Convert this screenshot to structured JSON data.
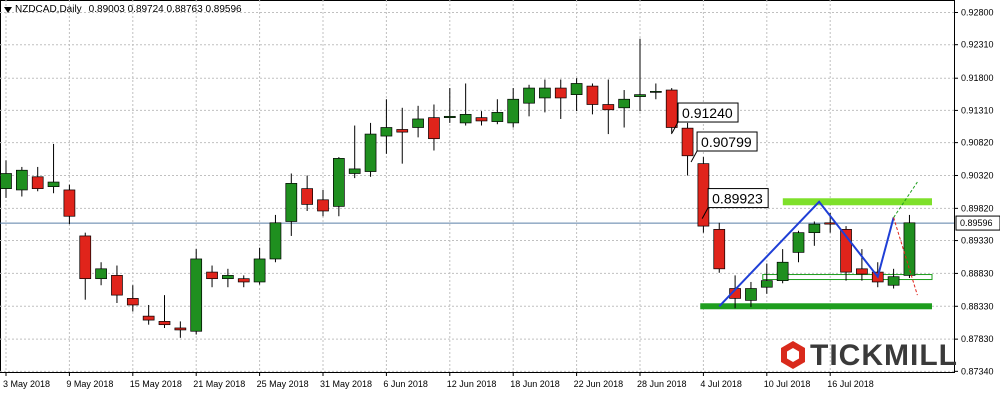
{
  "header": {
    "symbol": "NZDCAD,Daily",
    "ohlc": "0.89003 0.89724 0.88763 0.89596"
  },
  "logo": {
    "text": "TICKMILL"
  },
  "colors": {
    "bull": "#1f8f1f",
    "bear": "#e0241b",
    "pattern": "#1f3fd6",
    "support": "#1e9e1e",
    "resistance": "#7ee02a",
    "current_price": "#5a7fa8"
  },
  "chart_data": {
    "type": "candlestick",
    "title": "NZDCAD,Daily",
    "ylim": [
      0.8733,
      0.9299
    ],
    "y_ticks": [
      "0.92800",
      "0.92310",
      "0.91800",
      "0.91310",
      "0.90820",
      "0.90320",
      "0.89820",
      "0.89330",
      "0.88830",
      "0.88330",
      "0.87830",
      "0.87340"
    ],
    "x_ticks": [
      {
        "index": 0,
        "label": "3 May 2018"
      },
      {
        "index": 4,
        "label": "9 May 2018"
      },
      {
        "index": 8,
        "label": "15 May 2018"
      },
      {
        "index": 12,
        "label": "21 May 2018"
      },
      {
        "index": 16,
        "label": "25 May 2018"
      },
      {
        "index": 20,
        "label": "31 May 2018"
      },
      {
        "index": 24,
        "label": "6 Jun 2018"
      },
      {
        "index": 28,
        "label": "12 Jun 2018"
      },
      {
        "index": 32,
        "label": "18 Jun 2018"
      },
      {
        "index": 36,
        "label": "22 Jun 2018"
      },
      {
        "index": 40,
        "label": "28 Jun 2018"
      },
      {
        "index": 44,
        "label": "4 Jul 2018"
      },
      {
        "index": 48,
        "label": "10 Jul 2018"
      },
      {
        "index": 52,
        "label": "16 Jul 2018"
      }
    ],
    "candles": [
      {
        "o": 0.9012,
        "h": 0.9055,
        "l": 0.8998,
        "c": 0.9035
      },
      {
        "o": 0.901,
        "h": 0.9045,
        "l": 0.9,
        "c": 0.904
      },
      {
        "o": 0.903,
        "h": 0.9045,
        "l": 0.9008,
        "c": 0.9012
      },
      {
        "o": 0.9015,
        "h": 0.908,
        "l": 0.9005,
        "c": 0.9022
      },
      {
        "o": 0.901,
        "h": 0.9018,
        "l": 0.8958,
        "c": 0.897
      },
      {
        "o": 0.894,
        "h": 0.8945,
        "l": 0.8843,
        "c": 0.8875
      },
      {
        "o": 0.8875,
        "h": 0.89,
        "l": 0.8865,
        "c": 0.889
      },
      {
        "o": 0.888,
        "h": 0.8895,
        "l": 0.8838,
        "c": 0.885
      },
      {
        "o": 0.8845,
        "h": 0.8865,
        "l": 0.8825,
        "c": 0.8835
      },
      {
        "o": 0.8818,
        "h": 0.8835,
        "l": 0.8805,
        "c": 0.8812
      },
      {
        "o": 0.881,
        "h": 0.885,
        "l": 0.88,
        "c": 0.8805
      },
      {
        "o": 0.88,
        "h": 0.881,
        "l": 0.8785,
        "c": 0.8797
      },
      {
        "o": 0.8795,
        "h": 0.892,
        "l": 0.879,
        "c": 0.8905
      },
      {
        "o": 0.8885,
        "h": 0.8895,
        "l": 0.8862,
        "c": 0.8875
      },
      {
        "o": 0.8875,
        "h": 0.889,
        "l": 0.8862,
        "c": 0.888
      },
      {
        "o": 0.8875,
        "h": 0.888,
        "l": 0.8862,
        "c": 0.887
      },
      {
        "o": 0.887,
        "h": 0.8922,
        "l": 0.8866,
        "c": 0.8905
      },
      {
        "o": 0.8905,
        "h": 0.8972,
        "l": 0.89,
        "c": 0.896
      },
      {
        "o": 0.8962,
        "h": 0.9035,
        "l": 0.894,
        "c": 0.902
      },
      {
        "o": 0.9012,
        "h": 0.9032,
        "l": 0.8978,
        "c": 0.8988
      },
      {
        "o": 0.8995,
        "h": 0.901,
        "l": 0.897,
        "c": 0.8978
      },
      {
        "o": 0.8985,
        "h": 0.906,
        "l": 0.897,
        "c": 0.9058
      },
      {
        "o": 0.9035,
        "h": 0.9108,
        "l": 0.9028,
        "c": 0.9042
      },
      {
        "o": 0.9038,
        "h": 0.9112,
        "l": 0.903,
        "c": 0.9095
      },
      {
        "o": 0.9092,
        "h": 0.9148,
        "l": 0.9065,
        "c": 0.9105
      },
      {
        "o": 0.9102,
        "h": 0.9135,
        "l": 0.905,
        "c": 0.9098
      },
      {
        "o": 0.9105,
        "h": 0.9138,
        "l": 0.909,
        "c": 0.9118
      },
      {
        "o": 0.912,
        "h": 0.914,
        "l": 0.907,
        "c": 0.9088
      },
      {
        "o": 0.912,
        "h": 0.9165,
        "l": 0.9112,
        "c": 0.9122
      },
      {
        "o": 0.9112,
        "h": 0.9172,
        "l": 0.9108,
        "c": 0.9125
      },
      {
        "o": 0.912,
        "h": 0.913,
        "l": 0.9108,
        "c": 0.9115
      },
      {
        "o": 0.9114,
        "h": 0.9148,
        "l": 0.911,
        "c": 0.9128
      },
      {
        "o": 0.9112,
        "h": 0.9165,
        "l": 0.9105,
        "c": 0.9148
      },
      {
        "o": 0.9142,
        "h": 0.917,
        "l": 0.9122,
        "c": 0.9165
      },
      {
        "o": 0.915,
        "h": 0.9178,
        "l": 0.9128,
        "c": 0.9165
      },
      {
        "o": 0.9165,
        "h": 0.9178,
        "l": 0.9118,
        "c": 0.915
      },
      {
        "o": 0.9155,
        "h": 0.918,
        "l": 0.913,
        "c": 0.9172
      },
      {
        "o": 0.9168,
        "h": 0.9172,
        "l": 0.9125,
        "c": 0.914
      },
      {
        "o": 0.914,
        "h": 0.9178,
        "l": 0.9095,
        "c": 0.9132
      },
      {
        "o": 0.9135,
        "h": 0.9162,
        "l": 0.9105,
        "c": 0.9148
      },
      {
        "o": 0.9152,
        "h": 0.924,
        "l": 0.913,
        "c": 0.9155
      },
      {
        "o": 0.916,
        "h": 0.9172,
        "l": 0.9148,
        "c": 0.916
      },
      {
        "o": 0.9162,
        "h": 0.9165,
        "l": 0.9095,
        "c": 0.9105
      },
      {
        "o": 0.9104,
        "h": 0.9112,
        "l": 0.9032,
        "c": 0.9062
      },
      {
        "o": 0.905,
        "h": 0.906,
        "l": 0.8945,
        "c": 0.8955
      },
      {
        "o": 0.895,
        "h": 0.896,
        "l": 0.8884,
        "c": 0.889
      },
      {
        "o": 0.886,
        "h": 0.888,
        "l": 0.883,
        "c": 0.8845
      },
      {
        "o": 0.8842,
        "h": 0.887,
        "l": 0.8832,
        "c": 0.886
      },
      {
        "o": 0.8862,
        "h": 0.8898,
        "l": 0.8852,
        "c": 0.8872
      },
      {
        "o": 0.8872,
        "h": 0.892,
        "l": 0.8868,
        "c": 0.89
      },
      {
        "o": 0.8915,
        "h": 0.8948,
        "l": 0.89,
        "c": 0.8945
      },
      {
        "o": 0.8945,
        "h": 0.8962,
        "l": 0.8925,
        "c": 0.8958
      },
      {
        "o": 0.896,
        "h": 0.8975,
        "l": 0.8945,
        "c": 0.8958
      },
      {
        "o": 0.895,
        "h": 0.8955,
        "l": 0.8872,
        "c": 0.8885
      },
      {
        "o": 0.889,
        "h": 0.892,
        "l": 0.8872,
        "c": 0.8882
      },
      {
        "o": 0.8885,
        "h": 0.89,
        "l": 0.8862,
        "c": 0.887
      },
      {
        "o": 0.8865,
        "h": 0.889,
        "l": 0.886,
        "c": 0.8878
      },
      {
        "o": 0.888,
        "h": 0.8972,
        "l": 0.8876,
        "c": 0.896
      }
    ],
    "current_price": {
      "value": 0.89596,
      "label": "0.89596"
    },
    "price_labels": [
      {
        "label": "0.91240",
        "value": 0.9124
      },
      {
        "label": "0.90799",
        "value": 0.90799
      },
      {
        "label": "0.89923",
        "value": 0.89923
      }
    ],
    "levels": [
      {
        "kind": "resistance",
        "value": 0.8992,
        "from": 48,
        "to": 57
      },
      {
        "kind": "support",
        "value": 0.8833,
        "from": 45,
        "to": 57
      },
      {
        "kind": "neckline",
        "value": 0.88775,
        "from": 48,
        "to": 57
      }
    ],
    "pattern_path": [
      {
        "i": 45.0,
        "v": 0.8833
      },
      {
        "i": 51.3,
        "v": 0.8992
      },
      {
        "i": 55.0,
        "v": 0.8878
      },
      {
        "i": 56.0,
        "v": 0.8968
      }
    ],
    "projection_up": [
      {
        "i": 56.0,
        "v": 0.8968
      },
      {
        "i": 57.5,
        "v": 0.9022
      }
    ],
    "projection_down": [
      {
        "i": 56.0,
        "v": 0.8968
      },
      {
        "i": 57.5,
        "v": 0.885
      }
    ]
  }
}
